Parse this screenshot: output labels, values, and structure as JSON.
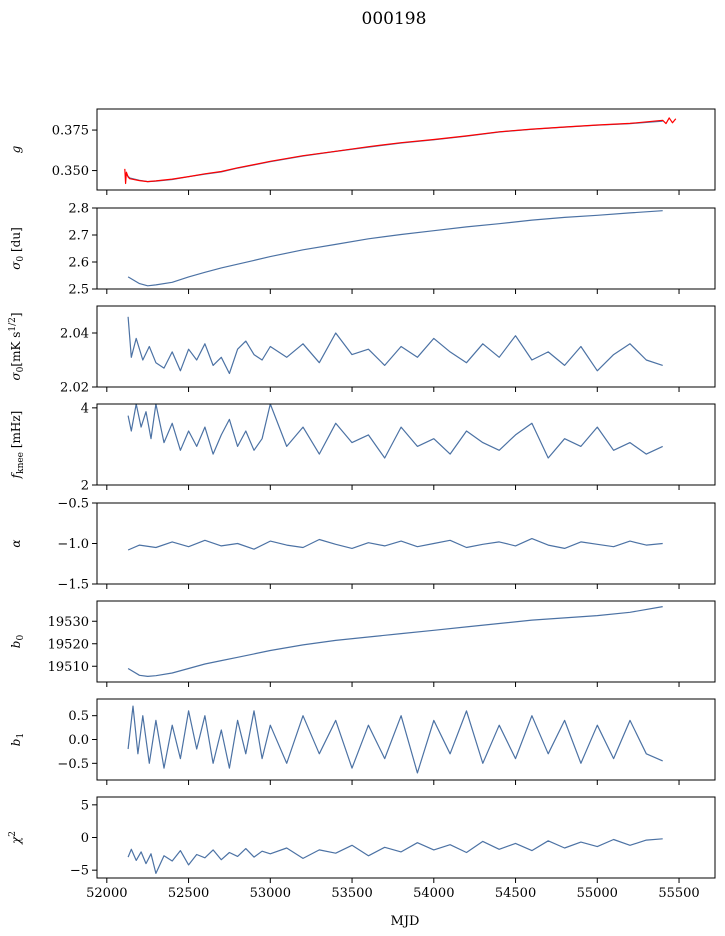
{
  "figure": {
    "title": "000198",
    "xlabel": "MJD"
  },
  "chart_data": [
    {
      "type": "line",
      "panel": "g",
      "ylabel": "g",
      "xlim": [
        51940,
        55720
      ],
      "ylim": [
        0.338,
        0.388
      ],
      "yticks": [
        0.35,
        0.375
      ],
      "ytick_labels": [
        "0.350",
        "0.375"
      ],
      "series": [
        {
          "color": "#4c72a4",
          "x": [
            52110,
            52140,
            52200,
            52250,
            52300,
            52400,
            52500,
            52600,
            52700,
            52800,
            52900,
            53000,
            53200,
            53400,
            53600,
            53800,
            54000,
            54200,
            54400,
            54600,
            54800,
            55000,
            55200,
            55400
          ],
          "y": [
            0.3485,
            0.3455,
            0.344,
            0.3432,
            0.3435,
            0.3445,
            0.3462,
            0.3478,
            0.3492,
            0.3515,
            0.3535,
            0.3555,
            0.359,
            0.3618,
            0.3645,
            0.367,
            0.369,
            0.3712,
            0.3738,
            0.3755,
            0.3768,
            0.378,
            0.379,
            0.3805
          ]
        },
        {
          "color": "#ff0000",
          "x": [
            52110,
            52115,
            52120,
            52130,
            52140,
            52200,
            52250,
            52300,
            52400,
            52500,
            52600,
            52700,
            52800,
            52900,
            53000,
            53200,
            53400,
            53600,
            53800,
            54000,
            54200,
            54400,
            54600,
            54800,
            55000,
            55200,
            55400,
            55420,
            55440,
            55460,
            55480
          ],
          "y": [
            0.351,
            0.342,
            0.349,
            0.346,
            0.345,
            0.3438,
            0.3432,
            0.3436,
            0.3447,
            0.3463,
            0.348,
            0.3494,
            0.3517,
            0.3537,
            0.3557,
            0.3592,
            0.3619,
            0.3647,
            0.3672,
            0.3692,
            0.3714,
            0.3739,
            0.3756,
            0.3769,
            0.3781,
            0.3791,
            0.381,
            0.379,
            0.3825,
            0.3795,
            0.382
          ]
        }
      ]
    },
    {
      "type": "line",
      "panel": "sigma0_du",
      "ylabel": "σ₀ [du]",
      "xlim": [
        51940,
        55720
      ],
      "ylim": [
        2.5,
        2.8
      ],
      "yticks": [
        2.5,
        2.6,
        2.7,
        2.8
      ],
      "ytick_labels": [
        "2.5",
        "2.6",
        "2.7",
        "2.8"
      ],
      "series": [
        {
          "color": "#4c72a4",
          "x": [
            52130,
            52200,
            52250,
            52300,
            52400,
            52500,
            52600,
            52700,
            52800,
            52900,
            53000,
            53200,
            53400,
            53600,
            53800,
            54000,
            54200,
            54400,
            54600,
            54800,
            55000,
            55200,
            55400
          ],
          "y": [
            2.545,
            2.52,
            2.512,
            2.515,
            2.525,
            2.545,
            2.562,
            2.578,
            2.592,
            2.606,
            2.62,
            2.645,
            2.665,
            2.686,
            2.702,
            2.716,
            2.73,
            2.742,
            2.755,
            2.765,
            2.773,
            2.782,
            2.79
          ]
        }
      ]
    },
    {
      "type": "line",
      "panel": "sigma0_mK",
      "ylabel": "σ₀[mK s^1/2]",
      "xlim": [
        51940,
        55720
      ],
      "ylim": [
        2.02,
        2.05
      ],
      "yticks": [
        2.02,
        2.04
      ],
      "ytick_labels": [
        "2.02",
        "2.04"
      ],
      "series": [
        {
          "color": "#4c72a4",
          "x": [
            52130,
            52150,
            52180,
            52220,
            52260,
            52300,
            52350,
            52400,
            52450,
            52500,
            52550,
            52600,
            52650,
            52700,
            52750,
            52800,
            52850,
            52900,
            52950,
            53000,
            53100,
            53200,
            53300,
            53400,
            53500,
            53600,
            53700,
            53800,
            53900,
            54000,
            54100,
            54200,
            54300,
            54400,
            54500,
            54600,
            54700,
            54800,
            54900,
            55000,
            55100,
            55200,
            55300,
            55400
          ],
          "y": [
            2.046,
            2.031,
            2.038,
            2.03,
            2.035,
            2.029,
            2.027,
            2.033,
            2.026,
            2.034,
            2.03,
            2.036,
            2.028,
            2.031,
            2.025,
            2.034,
            2.037,
            2.032,
            2.03,
            2.035,
            2.031,
            2.036,
            2.029,
            2.04,
            2.032,
            2.034,
            2.028,
            2.035,
            2.031,
            2.038,
            2.033,
            2.029,
            2.036,
            2.031,
            2.039,
            2.03,
            2.033,
            2.028,
            2.035,
            2.026,
            2.032,
            2.036,
            2.03,
            2.028
          ]
        }
      ]
    },
    {
      "type": "line",
      "panel": "fknee",
      "ylabel": "f_knee [mHz]",
      "xlim": [
        51940,
        55720
      ],
      "ylim": [
        2.0,
        4.1
      ],
      "yticks": [
        2,
        4
      ],
      "ytick_labels": [
        "2",
        "4"
      ],
      "series": [
        {
          "color": "#4c72a4",
          "x": [
            52130,
            52150,
            52180,
            52210,
            52240,
            52270,
            52300,
            52350,
            52400,
            52450,
            52500,
            52550,
            52600,
            52650,
            52700,
            52750,
            52800,
            52850,
            52900,
            52950,
            53000,
            53100,
            53200,
            53300,
            53400,
            53500,
            53600,
            53700,
            53800,
            53900,
            54000,
            54100,
            54200,
            54300,
            54400,
            54500,
            54600,
            54700,
            54800,
            54900,
            55000,
            55100,
            55200,
            55300,
            55400
          ],
          "y": [
            3.8,
            3.4,
            4.1,
            3.5,
            3.9,
            3.2,
            4.1,
            3.1,
            3.6,
            2.9,
            3.4,
            3.0,
            3.5,
            2.8,
            3.3,
            3.7,
            3.0,
            3.4,
            2.9,
            3.2,
            4.1,
            3.0,
            3.5,
            2.8,
            3.6,
            3.1,
            3.3,
            2.7,
            3.5,
            3.0,
            3.2,
            2.8,
            3.4,
            3.1,
            2.9,
            3.3,
            3.6,
            2.7,
            3.2,
            3.0,
            3.5,
            2.9,
            3.1,
            2.8,
            3.0
          ]
        }
      ]
    },
    {
      "type": "line",
      "panel": "alpha",
      "ylabel": "α",
      "xlim": [
        51940,
        55720
      ],
      "ylim": [
        -1.5,
        -0.5
      ],
      "yticks": [
        -1.5,
        -1.0,
        -0.5
      ],
      "ytick_labels": [
        "−1.5",
        "−1.0",
        "−0.5"
      ],
      "series": [
        {
          "color": "#4c72a4",
          "x": [
            52130,
            52200,
            52300,
            52400,
            52500,
            52600,
            52700,
            52800,
            52900,
            53000,
            53100,
            53200,
            53300,
            53400,
            53500,
            53600,
            53700,
            53800,
            53900,
            54000,
            54100,
            54200,
            54300,
            54400,
            54500,
            54600,
            54700,
            54800,
            54900,
            55000,
            55100,
            55200,
            55300,
            55400
          ],
          "y": [
            -1.08,
            -1.02,
            -1.05,
            -0.98,
            -1.04,
            -0.96,
            -1.03,
            -1.0,
            -1.07,
            -0.97,
            -1.02,
            -1.05,
            -0.95,
            -1.01,
            -1.06,
            -0.99,
            -1.03,
            -0.97,
            -1.04,
            -1.0,
            -0.96,
            -1.05,
            -1.01,
            -0.98,
            -1.03,
            -0.94,
            -1.02,
            -1.06,
            -0.98,
            -1.01,
            -1.04,
            -0.97,
            -1.02,
            -1.0
          ]
        }
      ]
    },
    {
      "type": "line",
      "panel": "b0",
      "ylabel": "b₀",
      "xlim": [
        51940,
        55720
      ],
      "ylim": [
        19503,
        19539
      ],
      "yticks": [
        19510,
        19520,
        19530
      ],
      "ytick_labels": [
        "19510",
        "19520",
        "19530"
      ],
      "series": [
        {
          "color": "#4c72a4",
          "x": [
            52130,
            52200,
            52250,
            52300,
            52400,
            52500,
            52600,
            52700,
            52800,
            52900,
            53000,
            53200,
            53400,
            53600,
            53800,
            54000,
            54200,
            54400,
            54600,
            54800,
            55000,
            55200,
            55400
          ],
          "y": [
            19509,
            19506,
            19505.5,
            19505.8,
            19507,
            19509,
            19511,
            19512.5,
            19514,
            19515.5,
            19517,
            19519.5,
            19521.5,
            19523,
            19524.5,
            19526,
            19527.5,
            19529,
            19530.5,
            19531.5,
            19532.5,
            19534,
            19536.5
          ]
        }
      ]
    },
    {
      "type": "line",
      "panel": "b1",
      "ylabel": "b₁",
      "xlim": [
        51940,
        55720
      ],
      "ylim": [
        -0.85,
        0.85
      ],
      "yticks": [
        -0.5,
        0.0,
        0.5
      ],
      "ytick_labels": [
        "−0.5",
        "0.0",
        "0.5"
      ],
      "series": [
        {
          "color": "#4c72a4",
          "x": [
            52130,
            52160,
            52190,
            52220,
            52260,
            52300,
            52350,
            52400,
            52450,
            52500,
            52550,
            52600,
            52650,
            52700,
            52750,
            52800,
            52850,
            52900,
            52950,
            53000,
            53100,
            53200,
            53300,
            53400,
            53500,
            53600,
            53700,
            53800,
            53900,
            54000,
            54100,
            54200,
            54300,
            54400,
            54500,
            54600,
            54700,
            54800,
            54900,
            55000,
            55100,
            55200,
            55300,
            55400
          ],
          "y": [
            -0.2,
            0.7,
            -0.3,
            0.5,
            -0.5,
            0.4,
            -0.6,
            0.3,
            -0.4,
            0.6,
            -0.2,
            0.5,
            -0.5,
            0.2,
            -0.6,
            0.4,
            -0.3,
            0.6,
            -0.4,
            0.3,
            -0.5,
            0.5,
            -0.3,
            0.4,
            -0.6,
            0.3,
            -0.4,
            0.5,
            -0.7,
            0.4,
            -0.3,
            0.6,
            -0.5,
            0.3,
            -0.4,
            0.5,
            -0.3,
            0.4,
            -0.5,
            0.3,
            -0.4,
            0.4,
            -0.3,
            -0.45
          ]
        }
      ]
    },
    {
      "type": "line",
      "panel": "chi2",
      "ylabel": "χ²",
      "xlim": [
        51940,
        55720
      ],
      "ylim": [
        -6.2,
        6.2
      ],
      "yticks": [
        -5,
        0,
        5
      ],
      "ytick_labels": [
        "−5",
        "0",
        "5"
      ],
      "series": [
        {
          "color": "#4c72a4",
          "x": [
            52130,
            52150,
            52180,
            52210,
            52240,
            52270,
            52300,
            52350,
            52400,
            52450,
            52500,
            52550,
            52600,
            52650,
            52700,
            52750,
            52800,
            52850,
            52900,
            52950,
            53000,
            53100,
            53200,
            53300,
            53400,
            53500,
            53600,
            53700,
            53800,
            53900,
            54000,
            54100,
            54200,
            54300,
            54400,
            54500,
            54600,
            54700,
            54800,
            54900,
            55000,
            55100,
            55200,
            55300,
            55400
          ],
          "y": [
            -3.0,
            -1.8,
            -3.5,
            -2.2,
            -4.0,
            -2.5,
            -5.5,
            -2.8,
            -3.6,
            -2.0,
            -4.2,
            -2.6,
            -3.1,
            -1.9,
            -3.4,
            -2.3,
            -2.9,
            -1.7,
            -3.0,
            -2.1,
            -2.5,
            -1.6,
            -3.2,
            -1.9,
            -2.4,
            -1.2,
            -2.8,
            -1.5,
            -2.2,
            -0.8,
            -1.9,
            -1.1,
            -2.3,
            -0.6,
            -1.8,
            -0.9,
            -2.0,
            -0.5,
            -1.6,
            -0.7,
            -1.4,
            -0.3,
            -1.2,
            -0.4,
            -0.2
          ]
        }
      ]
    }
  ],
  "x_axis": {
    "ticks": [
      52000,
      52500,
      53000,
      53500,
      54000,
      54500,
      55000,
      55500
    ],
    "tick_labels": [
      "52000",
      "52500",
      "53000",
      "53500",
      "54000",
      "54500",
      "55000",
      "55500"
    ]
  }
}
